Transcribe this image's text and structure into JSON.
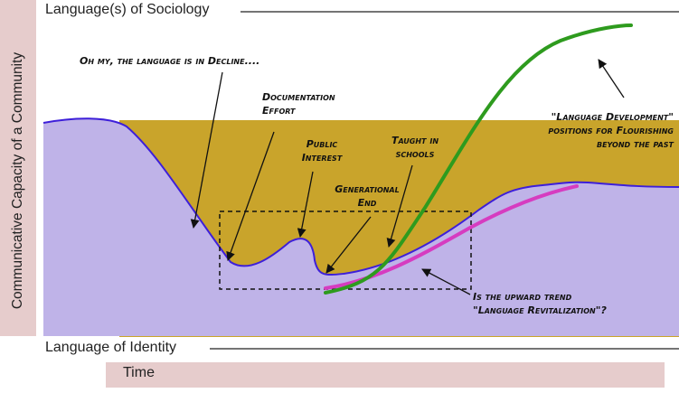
{
  "axes": {
    "top_label": "Language(s) of Sociology",
    "bottom_label": "Language of Identity",
    "y_label": "Communicative Capacity of a Community",
    "x_label": "Time"
  },
  "annotations": {
    "decline": "Oh my, the language is in Decline....",
    "documentation_1": "Documentation",
    "documentation_2": "Effort",
    "public_1": "Public",
    "public_2": "Interest",
    "generational_1": "Generational",
    "generational_2": "End",
    "taught_1": "Taught in",
    "taught_2": "schools",
    "development_1": "\"Language Development\"",
    "development_2": "positions for Flourishing",
    "development_3": "beyond the past",
    "revitalization_1": "Is the upward trend",
    "revitalization_2": "\"Language Revitalization\"?"
  },
  "colors": {
    "sociology_band": "#c9a42b",
    "identity_area": "#bfb3e8",
    "boundary_line": "#3d1fd9",
    "development_curve": "#2e9b1e",
    "revitalization_curve": "#d63cc0",
    "axis_label_background": "#e6cccc"
  }
}
